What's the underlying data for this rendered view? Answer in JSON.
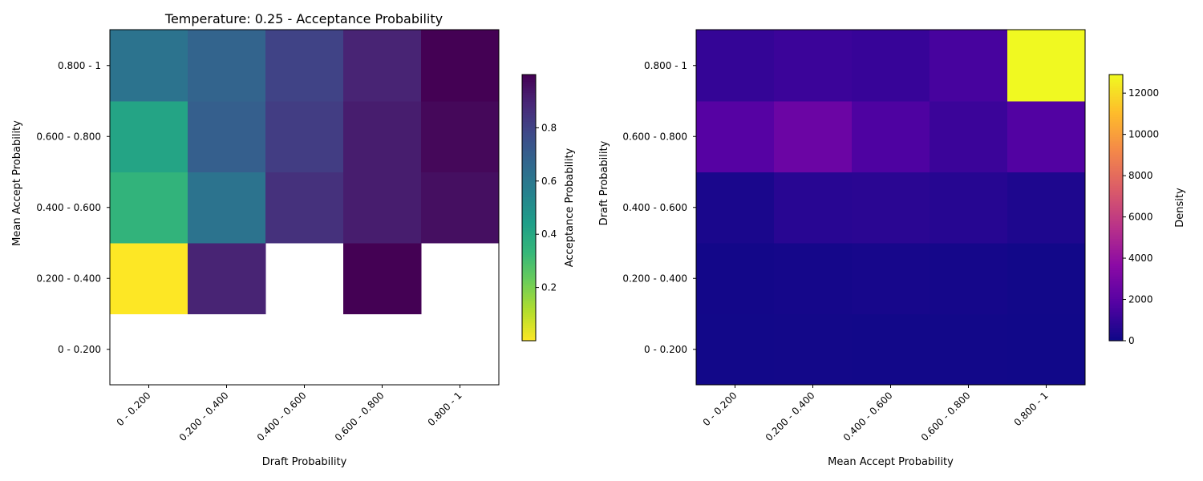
{
  "chart_data": [
    {
      "type": "heatmap",
      "title": "Temperature: 0.25 - Acceptance Probability",
      "xlabel": "Draft Probability",
      "ylabel": "Mean Accept Probability",
      "x_categories": [
        "0 - 0.200",
        "0.200 - 0.400",
        "0.400 - 0.600",
        "0.600 - 0.800",
        "0.800 - 1"
      ],
      "y_categories": [
        "0 - 0.200",
        "0.200 - 0.400",
        "0.400 - 0.600",
        "0.600 - 0.800",
        "0.800 - 1"
      ],
      "values": [
        [
          null,
          null,
          null,
          null,
          null
        ],
        [
          0.0,
          0.9,
          null,
          1.0,
          null
        ],
        [
          0.35,
          0.62,
          0.86,
          0.92,
          0.96
        ],
        [
          0.42,
          0.7,
          0.82,
          0.92,
          0.98
        ],
        [
          0.62,
          0.68,
          0.8,
          0.9,
          1.0
        ]
      ],
      "colormap": "viridis_r",
      "colorbar": {
        "label": "Acceptance Probability",
        "range": [
          0.0,
          1.0
        ],
        "ticks": [
          0.2,
          0.4,
          0.6,
          0.8
        ],
        "tick_labels": [
          "0.2",
          "0.4",
          "0.6",
          "0.8"
        ]
      }
    },
    {
      "type": "heatmap",
      "title": "",
      "xlabel": "Mean Accept Probability",
      "ylabel": "Draft Probability",
      "x_categories": [
        "0 - 0.200",
        "0.200 - 0.400",
        "0.400 - 0.600",
        "0.600 - 0.800",
        "0.800 - 1"
      ],
      "y_categories": [
        "0 - 0.200",
        "0.200 - 0.400",
        "0.400 - 0.600",
        "0.600 - 0.800",
        "0.800 - 1"
      ],
      "values": [
        [
          120,
          150,
          140,
          130,
          100
        ],
        [
          160,
          220,
          250,
          200,
          140
        ],
        [
          350,
          700,
          750,
          650,
          450
        ],
        [
          1900,
          2600,
          1700,
          1200,
          1800
        ],
        [
          1000,
          1200,
          1100,
          1500,
          12900
        ]
      ],
      "colormap": "plasma",
      "colorbar": {
        "label": "Density",
        "range": [
          0,
          12900
        ],
        "ticks": [
          0,
          2000,
          4000,
          6000,
          8000,
          10000,
          12000
        ],
        "tick_labels": [
          "0",
          "2000",
          "4000",
          "6000",
          "8000",
          "10000",
          "12000"
        ]
      }
    }
  ]
}
